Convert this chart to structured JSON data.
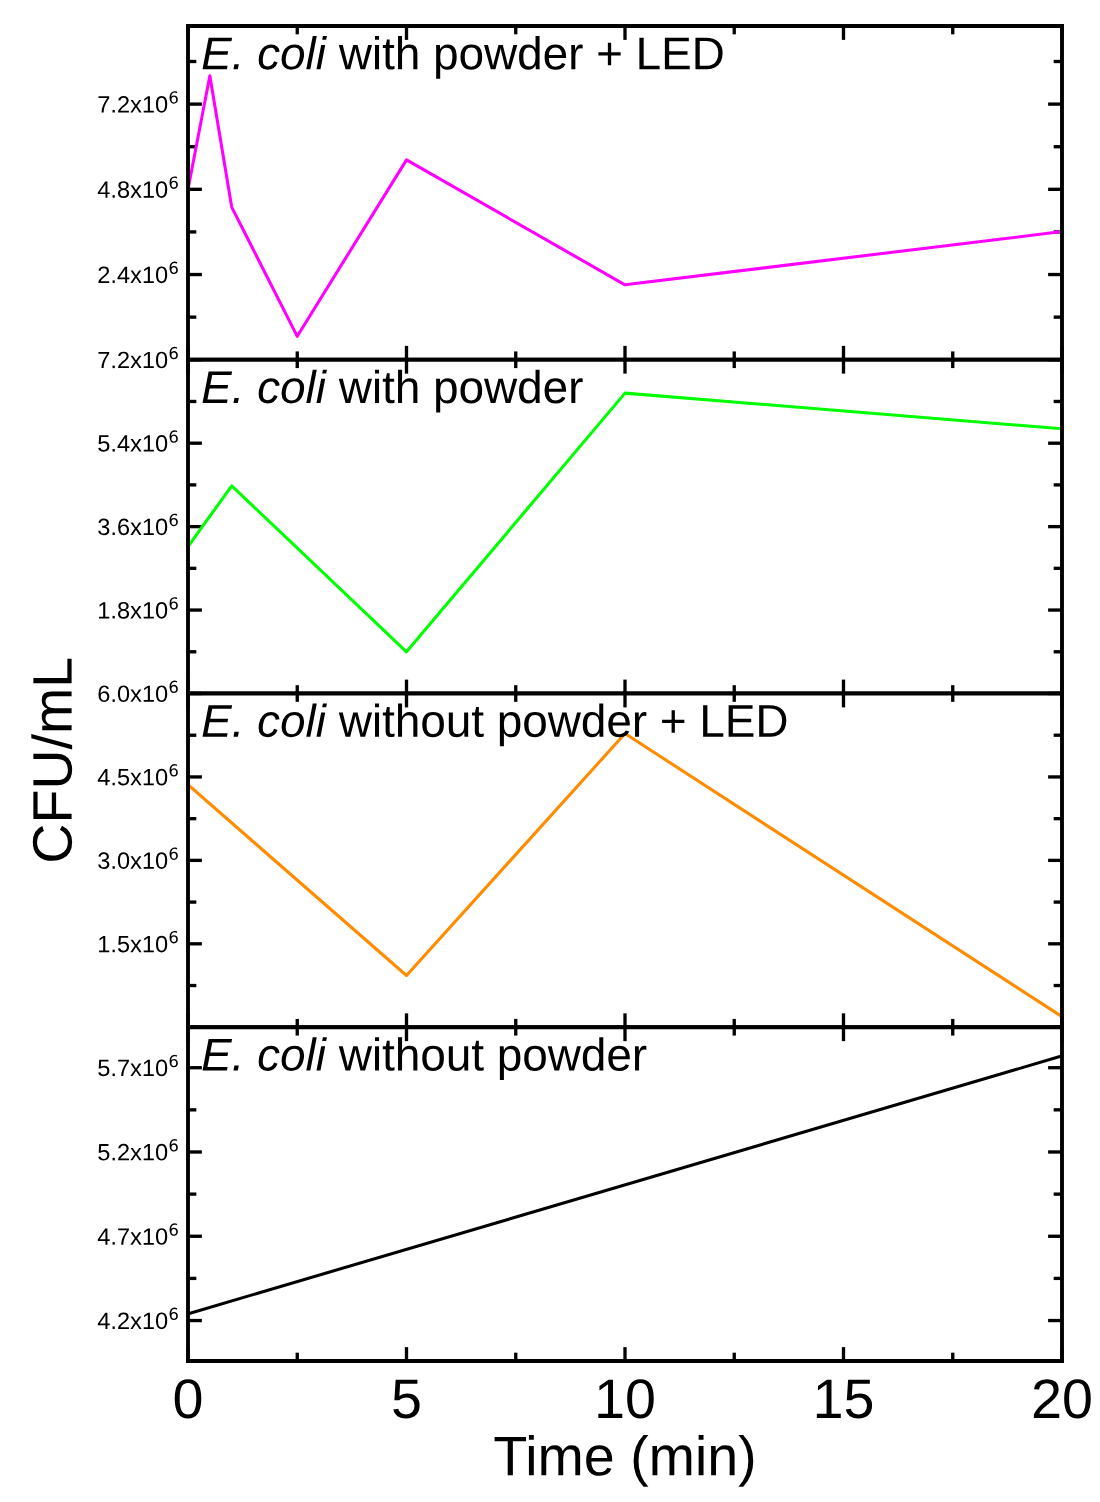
{
  "chart_data": [
    {
      "type": "line",
      "title": "E. coli with powder + LED",
      "x": [
        0,
        0.5,
        1,
        2.5,
        5,
        10,
        20
      ],
      "series": [
        {
          "color": "#ff00ff",
          "values": [
            4800000,
            8000000,
            4300000,
            660000,
            5630000,
            2110000,
            3610000
          ]
        }
      ],
      "xlim": [
        0,
        20
      ],
      "xticks": [
        0,
        5,
        10,
        15,
        20
      ],
      "ylim": [
        0,
        9400000
      ],
      "yticks": [
        {
          "value": 2400000,
          "label": "2.4x10$^{6}$"
        },
        {
          "value": 4800000,
          "label": "4.8x10$^{6}$"
        },
        {
          "value": 7200000,
          "label": "7.2x10$^{6}$"
        }
      ],
      "tick_labels": "y",
      "grid": false,
      "legend": false
    },
    {
      "type": "line",
      "title": "E. coli with powder",
      "x": [
        0,
        1,
        5,
        10,
        20
      ],
      "series": [
        {
          "color": "#00ff00",
          "values": [
            3170000,
            4480000,
            900000,
            6480000,
            5710000
          ]
        }
      ],
      "xlim": [
        0,
        20
      ],
      "xticks": [
        0,
        5,
        10,
        15,
        20
      ],
      "ylim": [
        0,
        7200000
      ],
      "yticks": [
        {
          "value": 1800000,
          "label": "1.8x10$^{6}$"
        },
        {
          "value": 3600000,
          "label": "3.6x10$^{6}$"
        },
        {
          "value": 5400000,
          "label": "5.4x10$^{6}$"
        },
        {
          "value": 7200000,
          "label": "7.2x10$^{6}$"
        }
      ],
      "tick_labels": "y",
      "grid": false,
      "legend": false
    },
    {
      "type": "line",
      "title": "E. coli without powder + LED",
      "ylabel": "CFU/mL",
      "x": [
        0,
        5,
        10,
        20
      ],
      "series": [
        {
          "color": "#ff8c00",
          "values": [
            4360000,
            930000,
            5280000,
            190000
          ]
        }
      ],
      "xlim": [
        0,
        20
      ],
      "xticks": [
        0,
        5,
        10,
        15,
        20
      ],
      "ylim": [
        0,
        6000000
      ],
      "yticks": [
        {
          "value": 1500000,
          "label": "1.5x10$^{6}$"
        },
        {
          "value": 3000000,
          "label": "3.0x10$^{6}$"
        },
        {
          "value": 4500000,
          "label": "4.5x10$^{6}$"
        },
        {
          "value": 6000000,
          "label": "6.0x10$^{6}$"
        }
      ],
      "tick_labels": "y",
      "grid": false,
      "legend": false
    },
    {
      "type": "line",
      "title": "E. coli without powder",
      "xlabel": "Time (min)",
      "x": [
        0,
        20
      ],
      "series": [
        {
          "color": "#000000",
          "values": [
            4240000,
            5770000
          ]
        }
      ],
      "xlim": [
        0,
        20
      ],
      "xticks": [
        0,
        5,
        10,
        15,
        20
      ],
      "ylim": [
        3960000,
        5940000
      ],
      "yticks": [
        {
          "value": 4200000,
          "label": "4.2x10$^{6}$"
        },
        {
          "value": 4700000,
          "label": "4.7x10$^{6}$"
        },
        {
          "value": 5200000,
          "label": "5.2x10$^{6}$"
        },
        {
          "value": 5700000,
          "label": "5.7x10$^{6}$"
        }
      ],
      "grid": false,
      "legend": false
    }
  ]
}
